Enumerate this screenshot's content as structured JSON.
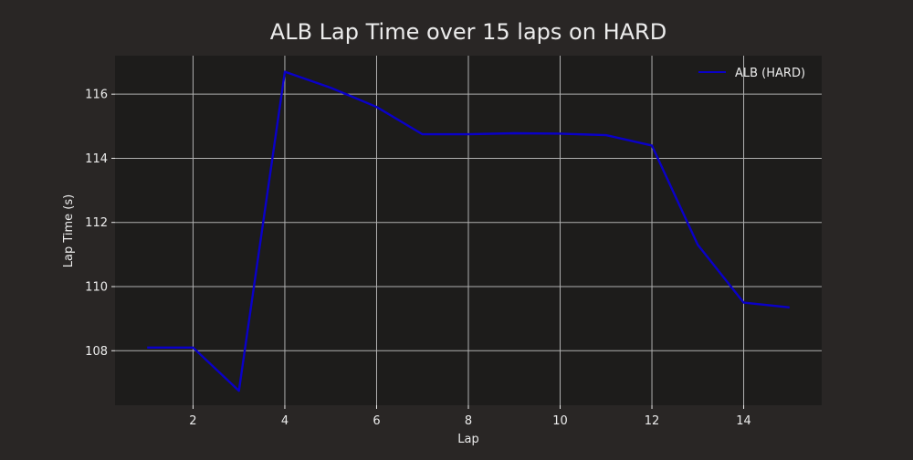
{
  "colors": {
    "background": "#292625",
    "plot_background": "#1d1c1b",
    "grid": "#b0b0b0",
    "text": "#ececec",
    "line": "#0a00c8"
  },
  "chart_data": {
    "type": "line",
    "title": "ALB Lap Time over 15 laps on HARD",
    "xlabel": "Lap",
    "ylabel": "Lap Time (s)",
    "xlim": [
      0.3,
      15.7
    ],
    "ylim": [
      106.3,
      117.2
    ],
    "xticks": [
      2,
      4,
      6,
      8,
      10,
      12,
      14
    ],
    "yticks": [
      108,
      110,
      112,
      114,
      116
    ],
    "grid": true,
    "legend_position": "top-right",
    "series": [
      {
        "name": "ALB (HARD)",
        "x": [
          1,
          2,
          3,
          4,
          5,
          6,
          7,
          8,
          9,
          10,
          11,
          12,
          13,
          14,
          15
        ],
        "y": [
          108.1,
          108.1,
          106.75,
          116.7,
          116.2,
          115.6,
          114.75,
          114.75,
          114.78,
          114.77,
          114.72,
          114.4,
          111.3,
          109.5,
          109.35
        ]
      }
    ]
  }
}
